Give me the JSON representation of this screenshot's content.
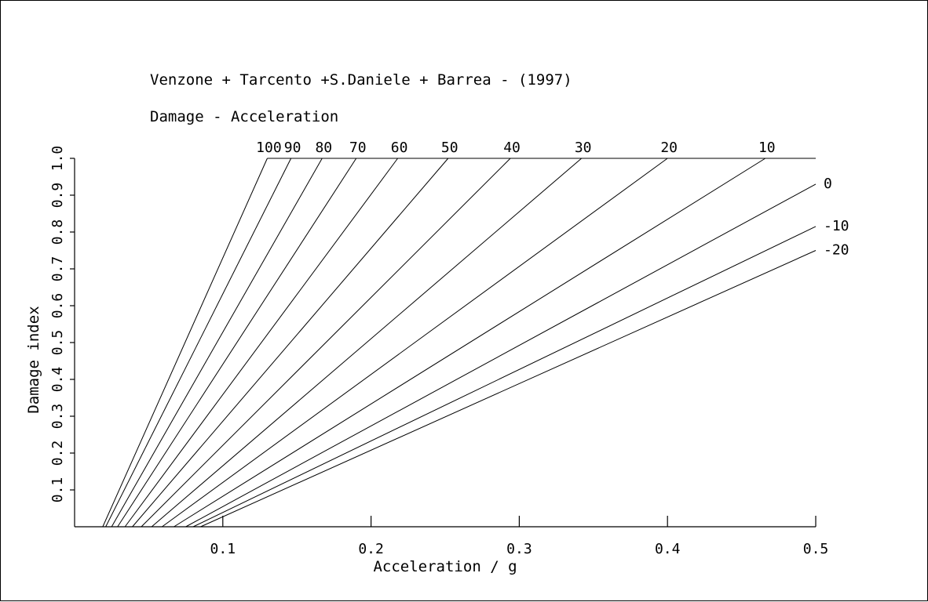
{
  "chart_data": {
    "type": "line",
    "title": "Venzone + Tarcento +S.Daniele + Barrea - (1997)",
    "subtitle": "Damage - Acceleration",
    "xlabel": "Acceleration / g",
    "ylabel": "Damage index",
    "xlim": [
      0.0,
      0.5
    ],
    "ylim": [
      0.0,
      1.0
    ],
    "xticks": [
      0.1,
      0.2,
      0.3,
      0.4,
      0.5
    ],
    "xtick_labels": [
      "0.1",
      "0.2",
      "0.3",
      "0.4",
      "0.5"
    ],
    "yticks": [
      0.1,
      0.2,
      0.3,
      0.4,
      0.5,
      0.6,
      0.7,
      0.8,
      0.9,
      1.0
    ],
    "ytick_labels": [
      "0.1",
      "0.2",
      "0.3",
      "0.4",
      "0.5",
      "0.6",
      "0.7",
      "0.8",
      "0.9",
      "1.0"
    ],
    "grid": false,
    "legend": "none",
    "series": [
      {
        "name": "100",
        "x": [
          0.019,
          0.13
        ],
        "y": [
          0.0,
          1.0
        ]
      },
      {
        "name": "90",
        "x": [
          0.021,
          0.146
        ],
        "y": [
          0.0,
          1.0
        ]
      },
      {
        "name": "80",
        "x": [
          0.025,
          0.167
        ],
        "y": [
          0.0,
          1.0
        ]
      },
      {
        "name": "70",
        "x": [
          0.029,
          0.19
        ],
        "y": [
          0.0,
          1.0
        ]
      },
      {
        "name": "60",
        "x": [
          0.034,
          0.218
        ],
        "y": [
          0.0,
          1.0
        ]
      },
      {
        "name": "50",
        "x": [
          0.039,
          0.252
        ],
        "y": [
          0.0,
          1.0
        ]
      },
      {
        "name": "40",
        "x": [
          0.045,
          0.294
        ],
        "y": [
          0.0,
          1.0
        ]
      },
      {
        "name": "30",
        "x": [
          0.052,
          0.342
        ],
        "y": [
          0.0,
          1.0
        ]
      },
      {
        "name": "20",
        "x": [
          0.059,
          0.4
        ],
        "y": [
          0.0,
          1.0
        ]
      },
      {
        "name": "10",
        "x": [
          0.067,
          0.466
        ],
        "y": [
          0.0,
          1.0
        ]
      },
      {
        "name": "0",
        "x": [
          0.075,
          0.5
        ],
        "y": [
          0.0,
          0.93
        ]
      },
      {
        "name": "-10",
        "x": [
          0.08,
          0.5
        ],
        "y": [
          0.0,
          0.815
        ]
      },
      {
        "name": "-20",
        "x": [
          0.085,
          0.5
        ],
        "y": [
          0.0,
          0.75
        ]
      }
    ]
  }
}
